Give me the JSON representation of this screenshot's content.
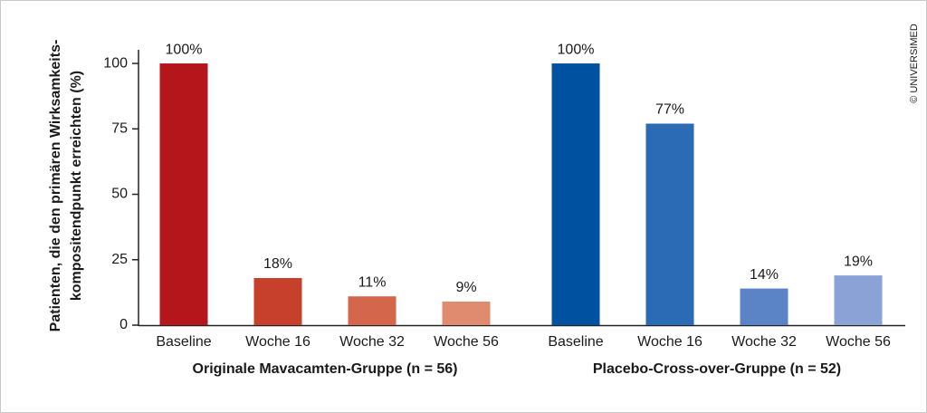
{
  "chart_data": {
    "type": "bar",
    "y_label_lines": [
      "Patienten, die den primären Wirksamkeits-",
      "kompositendpunkt erreichten (%)"
    ],
    "credit": "© UNIVERSIMED",
    "ylim": [
      0,
      105
    ],
    "yticks": [
      0,
      25,
      50,
      75,
      100
    ],
    "groups": [
      {
        "name": "Originale Mavacamten-Gruppe (n = 56)",
        "categories": [
          "Baseline",
          "Woche 16",
          "Woche 32",
          "Woche 56"
        ],
        "values": [
          100,
          18,
          11,
          9
        ],
        "value_labels": [
          "100%",
          "18%",
          "11%",
          "9%"
        ],
        "colors": [
          "#b5161b",
          "#c7402b",
          "#d4664b",
          "#e08a70"
        ]
      },
      {
        "name": "Placebo-Cross-over-Gruppe (n = 52)",
        "categories": [
          "Baseline",
          "Woche 16",
          "Woche 32",
          "Woche 56"
        ],
        "values": [
          100,
          77,
          14,
          19
        ],
        "value_labels": [
          "100%",
          "77%",
          "14%",
          "19%"
        ],
        "colors": [
          "#0052a1",
          "#2b6ab5",
          "#5a84c6",
          "#8aa2d6"
        ]
      }
    ]
  }
}
